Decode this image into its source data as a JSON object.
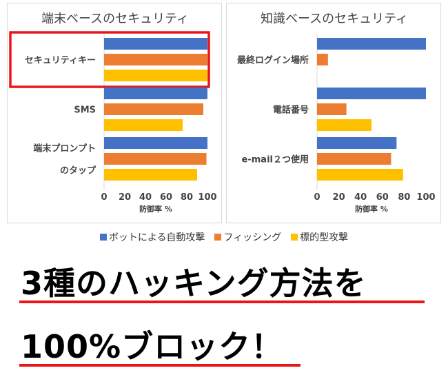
{
  "legend": {
    "items": [
      {
        "label": "ボットによる自動攻撃",
        "color": "#4472c4"
      },
      {
        "label": "フィッシング",
        "color": "#ed7d31"
      },
      {
        "label": "標的型攻撃",
        "color": "#ffc000"
      }
    ]
  },
  "headline": {
    "line1": "3種のハッキング方法を",
    "line2": "100%ブロック！",
    "underline_color": "#e8161b"
  },
  "chart_data": [
    {
      "type": "bar",
      "orientation": "horizontal",
      "title": "端末ベースのセキュリティ",
      "xlabel": "防御率 %",
      "xlim": [
        0,
        100
      ],
      "xticks": [
        0,
        20,
        40,
        60,
        80,
        100
      ],
      "categories": [
        {
          "label_lines": [
            "セキュリティキー"
          ],
          "highlighted": true
        },
        {
          "label_lines": [
            "SMS"
          ],
          "highlighted": false
        },
        {
          "label_lines": [
            "端末プロンプト",
            "のタップ"
          ],
          "highlighted": false
        }
      ],
      "series": [
        {
          "name": "ボットによる自動攻撃",
          "color": "#4472c4",
          "values": [
            100,
            100,
            100
          ]
        },
        {
          "name": "フィッシング",
          "color": "#ed7d31",
          "values": [
            100,
            96,
            99
          ]
        },
        {
          "name": "標的型攻撃",
          "color": "#ffc000",
          "values": [
            100,
            76,
            90
          ]
        }
      ],
      "highlight_color": "#e8161b"
    },
    {
      "type": "bar",
      "orientation": "horizontal",
      "title": "知識ベースのセキュリティ",
      "xlabel": "防御率 %",
      "xlim": [
        0,
        100
      ],
      "xticks": [
        0,
        20,
        40,
        60,
        80,
        100
      ],
      "categories": [
        {
          "label_lines": [
            "最終ログイン場所"
          ],
          "highlighted": false
        },
        {
          "label_lines": [
            "電話番号"
          ],
          "highlighted": false
        },
        {
          "label_lines": [
            "e-mail２つ使用"
          ],
          "highlighted": false
        }
      ],
      "series": [
        {
          "name": "ボットによる自動攻撃",
          "color": "#4472c4",
          "values": [
            100,
            100,
            73
          ]
        },
        {
          "name": "フィッシング",
          "color": "#ed7d31",
          "values": [
            10,
            27,
            68
          ]
        },
        {
          "name": "標的型攻撃",
          "color": "#ffc000",
          "values": [
            null,
            50,
            79
          ]
        }
      ],
      "highlight_color": "#e8161b"
    }
  ]
}
